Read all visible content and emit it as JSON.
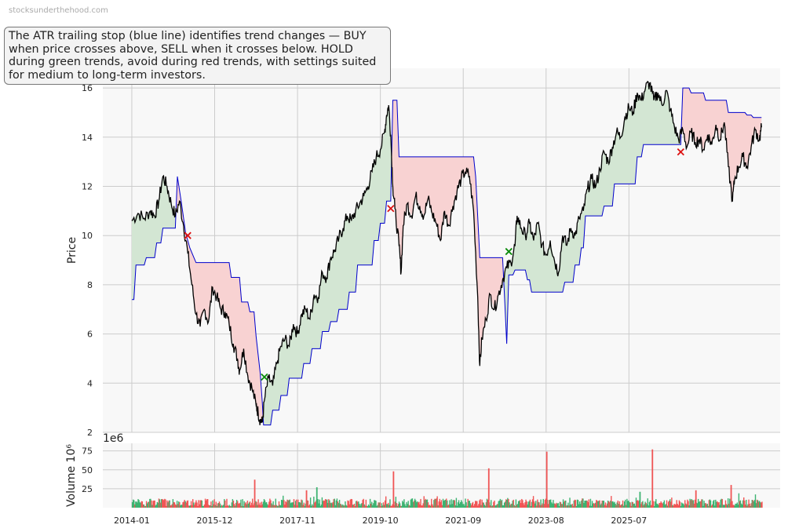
{
  "watermark": "stocksunderthehood.com",
  "note": "The ATR trailing stop (blue line) identifies trend changes — BUY when price crosses above, SELL when it crosses below. HOLD during green trends, avoid during red trends, with settings suited for medium to long-term investors.",
  "colors": {
    "price": "#000000",
    "stop": "#0000cc",
    "green_fill": "#d3e6d3",
    "red_fill": "#f8d2d2",
    "buy": "#0a8a0a",
    "sell": "#dd1111",
    "vol_up": "#3cb371",
    "vol_down": "#f05555",
    "grid": "#cccccc",
    "panel_bg": "#f8f8f8"
  },
  "chart_data": [
    {
      "type": "line",
      "ylabel": "Price",
      "ylim": [
        2,
        16.8
      ],
      "yticks": [
        "2",
        "4",
        "6",
        "8",
        "10",
        "12",
        "14",
        "16"
      ],
      "grid": true,
      "x_dates": [
        "2014-01",
        "2015-12",
        "2017-11",
        "2019-10",
        "2021-09",
        "2023-08",
        "2025-07"
      ],
      "price": [
        [
          2014.0,
          10.6
        ],
        [
          2014.15,
          10.9
        ],
        [
          2014.3,
          10.7
        ],
        [
          2014.45,
          11.0
        ],
        [
          2014.55,
          10.8
        ],
        [
          2014.65,
          11.4
        ],
        [
          2014.75,
          12.4
        ],
        [
          2014.85,
          12.0
        ],
        [
          2014.95,
          11.3
        ],
        [
          2015.05,
          10.8
        ],
        [
          2015.15,
          11.4
        ],
        [
          2015.25,
          10.4
        ],
        [
          2015.35,
          9.3
        ],
        [
          2015.45,
          8.0
        ],
        [
          2015.55,
          6.8
        ],
        [
          2015.65,
          6.3
        ],
        [
          2015.75,
          7.0
        ],
        [
          2015.85,
          6.5
        ],
        [
          2015.95,
          7.9
        ],
        [
          2016.05,
          7.5
        ],
        [
          2016.15,
          7.0
        ],
        [
          2016.25,
          6.9
        ],
        [
          2016.35,
          6.4
        ],
        [
          2016.45,
          5.6
        ],
        [
          2016.55,
          5.0
        ],
        [
          2016.6,
          4.5
        ],
        [
          2016.7,
          5.4
        ],
        [
          2016.8,
          4.3
        ],
        [
          2016.9,
          3.8
        ],
        [
          2017.0,
          3.1
        ],
        [
          2017.05,
          2.8
        ],
        [
          2017.1,
          2.5
        ],
        [
          2017.15,
          2.4
        ],
        [
          2017.2,
          3.3
        ],
        [
          2017.3,
          4.2
        ],
        [
          2017.4,
          3.9
        ],
        [
          2017.5,
          4.8
        ],
        [
          2017.6,
          5.5
        ],
        [
          2017.7,
          5.8
        ],
        [
          2017.8,
          5.5
        ],
        [
          2017.9,
          6.4
        ],
        [
          2018.0,
          6.0
        ],
        [
          2018.1,
          6.8
        ],
        [
          2018.2,
          7.0
        ],
        [
          2018.3,
          6.6
        ],
        [
          2018.4,
          7.6
        ],
        [
          2018.5,
          7.5
        ],
        [
          2018.6,
          8.5
        ],
        [
          2018.7,
          8.3
        ],
        [
          2018.8,
          9.1
        ],
        [
          2018.9,
          9.4
        ],
        [
          2019.0,
          9.9
        ],
        [
          2019.1,
          10.3
        ],
        [
          2019.2,
          10.8
        ],
        [
          2019.3,
          10.6
        ],
        [
          2019.4,
          11.0
        ],
        [
          2019.5,
          11.3
        ],
        [
          2019.6,
          11.6
        ],
        [
          2019.7,
          12.0
        ],
        [
          2019.8,
          12.6
        ],
        [
          2019.9,
          13.2
        ],
        [
          2020.0,
          13.5
        ],
        [
          2020.1,
          14.2
        ],
        [
          2020.15,
          14.9
        ],
        [
          2020.2,
          15.3
        ],
        [
          2020.25,
          14.1
        ],
        [
          2020.3,
          12.0
        ],
        [
          2020.35,
          11.1
        ],
        [
          2020.45,
          9.6
        ],
        [
          2020.5,
          8.5
        ],
        [
          2020.55,
          10.4
        ],
        [
          2020.65,
          11.3
        ],
        [
          2020.75,
          10.8
        ],
        [
          2020.85,
          11.6
        ],
        [
          2020.95,
          11.2
        ],
        [
          2021.05,
          10.8
        ],
        [
          2021.15,
          11.5
        ],
        [
          2021.25,
          10.9
        ],
        [
          2021.35,
          10.5
        ],
        [
          2021.45,
          9.8
        ],
        [
          2021.55,
          11.0
        ],
        [
          2021.65,
          10.4
        ],
        [
          2021.75,
          11.2
        ],
        [
          2021.85,
          11.8
        ],
        [
          2021.95,
          12.3
        ],
        [
          2022.05,
          12.6
        ],
        [
          2022.15,
          12.4
        ],
        [
          2022.25,
          11.0
        ],
        [
          2022.35,
          7.5
        ],
        [
          2022.4,
          4.7
        ],
        [
          2022.45,
          5.8
        ],
        [
          2022.55,
          6.6
        ],
        [
          2022.65,
          7.6
        ],
        [
          2022.75,
          7.0
        ],
        [
          2022.85,
          7.6
        ],
        [
          2022.95,
          8.2
        ],
        [
          2023.05,
          8.7
        ],
        [
          2023.15,
          8.9
        ],
        [
          2023.25,
          9.6
        ],
        [
          2023.3,
          10.8
        ],
        [
          2023.4,
          10.3
        ],
        [
          2023.5,
          10.0
        ],
        [
          2023.6,
          10.5
        ],
        [
          2023.7,
          9.8
        ],
        [
          2023.8,
          10.5
        ],
        [
          2023.9,
          9.6
        ],
        [
          2024.0,
          9.2
        ],
        [
          2024.1,
          9.8
        ],
        [
          2024.2,
          9.0
        ],
        [
          2024.3,
          8.5
        ],
        [
          2024.4,
          10.0
        ],
        [
          2024.5,
          9.6
        ],
        [
          2024.6,
          10.3
        ],
        [
          2024.7,
          10.0
        ],
        [
          2024.8,
          10.7
        ],
        [
          2024.9,
          11.0
        ],
        [
          2025.0,
          11.9
        ],
        [
          2025.1,
          12.3
        ],
        [
          2025.2,
          12.0
        ],
        [
          2025.3,
          12.7
        ],
        [
          2025.4,
          13.4
        ],
        [
          2025.5,
          13.0
        ],
        [
          2025.6,
          13.6
        ],
        [
          2025.7,
          14.2
        ],
        [
          2025.8,
          14.0
        ],
        [
          2025.9,
          14.8
        ],
        [
          2026.0,
          15.2
        ],
        [
          2026.1,
          15.0
        ],
        [
          2026.2,
          15.8
        ],
        [
          2026.3,
          15.5
        ],
        [
          2026.4,
          16.0
        ],
        [
          2026.5,
          16.2
        ],
        [
          2026.6,
          15.5
        ],
        [
          2026.7,
          15.8
        ],
        [
          2026.8,
          15.3
        ],
        [
          2026.9,
          15.9
        ],
        [
          2027.0,
          15.1
        ],
        [
          2027.1,
          14.4
        ],
        [
          2027.2,
          13.9
        ],
        [
          2027.3,
          14.3
        ],
        [
          2027.4,
          13.6
        ],
        [
          2027.5,
          14.2
        ],
        [
          2027.6,
          13.8
        ],
        [
          2027.7,
          13.9
        ],
        [
          2027.8,
          13.5
        ],
        [
          2027.9,
          14.1
        ],
        [
          2028.0,
          13.7
        ],
        [
          2028.1,
          14.5
        ],
        [
          2028.2,
          13.9
        ],
        [
          2028.3,
          14.6
        ],
        [
          2028.4,
          12.8
        ],
        [
          2028.5,
          11.4
        ],
        [
          2028.55,
          12.3
        ],
        [
          2028.65,
          12.8
        ],
        [
          2028.75,
          13.2
        ],
        [
          2028.85,
          12.8
        ],
        [
          2028.95,
          13.6
        ],
        [
          2029.05,
          14.3
        ],
        [
          2029.15,
          13.9
        ],
        [
          2029.2,
          14.4
        ]
      ],
      "stop": [
        [
          2014.0,
          7.4
        ],
        [
          2014.05,
          7.4
        ],
        [
          2014.1,
          8.8
        ],
        [
          2014.3,
          8.8
        ],
        [
          2014.35,
          9.1
        ],
        [
          2014.55,
          9.1
        ],
        [
          2014.6,
          9.7
        ],
        [
          2014.7,
          9.7
        ],
        [
          2014.75,
          10.3
        ],
        [
          2015.05,
          10.3
        ],
        [
          2015.1,
          12.4
        ],
        [
          2015.2,
          11.3
        ],
        [
          2015.3,
          10.1
        ],
        [
          2015.4,
          9.5
        ],
        [
          2015.5,
          9.1
        ],
        [
          2015.55,
          8.9
        ],
        [
          2016.35,
          8.9
        ],
        [
          2016.4,
          8.3
        ],
        [
          2016.6,
          8.3
        ],
        [
          2016.65,
          7.3
        ],
        [
          2016.8,
          7.3
        ],
        [
          2016.85,
          6.9
        ],
        [
          2016.95,
          6.9
        ],
        [
          2017.0,
          5.9
        ],
        [
          2017.1,
          4.4
        ],
        [
          2017.15,
          3.2
        ],
        [
          2017.18,
          2.3
        ],
        [
          2017.35,
          2.3
        ],
        [
          2017.4,
          2.9
        ],
        [
          2017.55,
          2.9
        ],
        [
          2017.6,
          3.5
        ],
        [
          2017.75,
          3.5
        ],
        [
          2017.8,
          4.2
        ],
        [
          2018.1,
          4.2
        ],
        [
          2018.15,
          4.8
        ],
        [
          2018.3,
          4.8
        ],
        [
          2018.35,
          5.4
        ],
        [
          2018.55,
          5.4
        ],
        [
          2018.6,
          6.1
        ],
        [
          2018.75,
          6.1
        ],
        [
          2018.8,
          6.5
        ],
        [
          2018.95,
          6.5
        ],
        [
          2019.0,
          7.0
        ],
        [
          2019.2,
          7.0
        ],
        [
          2019.25,
          7.7
        ],
        [
          2019.4,
          7.7
        ],
        [
          2019.45,
          8.8
        ],
        [
          2019.8,
          8.8
        ],
        [
          2019.85,
          9.8
        ],
        [
          2019.95,
          9.8
        ],
        [
          2020.0,
          10.5
        ],
        [
          2020.1,
          10.5
        ],
        [
          2020.15,
          11.4
        ],
        [
          2020.25,
          11.4
        ],
        [
          2020.3,
          15.5
        ],
        [
          2020.4,
          15.5
        ],
        [
          2020.45,
          13.2
        ],
        [
          2022.25,
          13.2
        ],
        [
          2022.3,
          12.4
        ],
        [
          2022.4,
          9.1
        ],
        [
          2022.95,
          9.1
        ],
        [
          2023.0,
          7.4
        ],
        [
          2023.05,
          5.6
        ],
        [
          2023.1,
          8.4
        ],
        [
          2023.2,
          8.4
        ],
        [
          2023.25,
          8.6
        ],
        [
          2023.5,
          8.6
        ],
        [
          2023.55,
          8.2
        ],
        [
          2023.6,
          8.2
        ],
        [
          2023.65,
          7.7
        ],
        [
          2024.4,
          7.7
        ],
        [
          2024.45,
          8.1
        ],
        [
          2024.65,
          8.1
        ],
        [
          2024.7,
          8.8
        ],
        [
          2024.8,
          8.8
        ],
        [
          2024.85,
          9.5
        ],
        [
          2024.9,
          9.5
        ],
        [
          2024.95,
          10.8
        ],
        [
          2025.35,
          10.8
        ],
        [
          2025.4,
          11.2
        ],
        [
          2025.6,
          11.2
        ],
        [
          2025.65,
          12.1
        ],
        [
          2026.15,
          12.1
        ],
        [
          2026.2,
          13.2
        ],
        [
          2026.3,
          13.2
        ],
        [
          2026.35,
          13.7
        ],
        [
          2027.25,
          13.7
        ],
        [
          2027.3,
          16.0
        ],
        [
          2027.45,
          16.0
        ],
        [
          2027.5,
          15.8
        ],
        [
          2027.8,
          15.8
        ],
        [
          2027.85,
          15.5
        ],
        [
          2028.35,
          15.5
        ],
        [
          2028.4,
          15.0
        ],
        [
          2028.8,
          15.0
        ],
        [
          2028.85,
          14.9
        ],
        [
          2028.95,
          14.9
        ],
        [
          2029.0,
          14.8
        ],
        [
          2029.2,
          14.8
        ]
      ],
      "signals": [
        {
          "type": "sell",
          "x": 2015.35,
          "y": 10.0
        },
        {
          "type": "buy",
          "x": 2017.2,
          "y": 4.25
        },
        {
          "type": "sell",
          "x": 2020.25,
          "y": 11.1
        },
        {
          "type": "buy",
          "x": 2023.1,
          "y": 9.35
        },
        {
          "type": "sell",
          "x": 2027.25,
          "y": 13.4
        }
      ]
    },
    {
      "type": "bar",
      "ylabel": "Volume  10⁶",
      "offset_label": "1e6",
      "ylim": [
        0,
        85
      ],
      "yticks": [
        "25",
        "50",
        "75"
      ],
      "typical_volume": [
        2,
        12
      ],
      "spikes": [
        {
          "x": 2016.95,
          "v": 37,
          "dir": "down"
        },
        {
          "x": 2018.2,
          "v": 23,
          "dir": "down"
        },
        {
          "x": 2018.45,
          "v": 27,
          "dir": "up"
        },
        {
          "x": 2020.3,
          "v": 48,
          "dir": "down"
        },
        {
          "x": 2022.6,
          "v": 52,
          "dir": "down"
        },
        {
          "x": 2024.0,
          "v": 74,
          "dir": "down"
        },
        {
          "x": 2026.25,
          "v": 21,
          "dir": "up"
        },
        {
          "x": 2026.55,
          "v": 77,
          "dir": "down"
        },
        {
          "x": 2027.6,
          "v": 23,
          "dir": "down"
        },
        {
          "x": 2028.45,
          "v": 30,
          "dir": "down"
        }
      ]
    }
  ]
}
